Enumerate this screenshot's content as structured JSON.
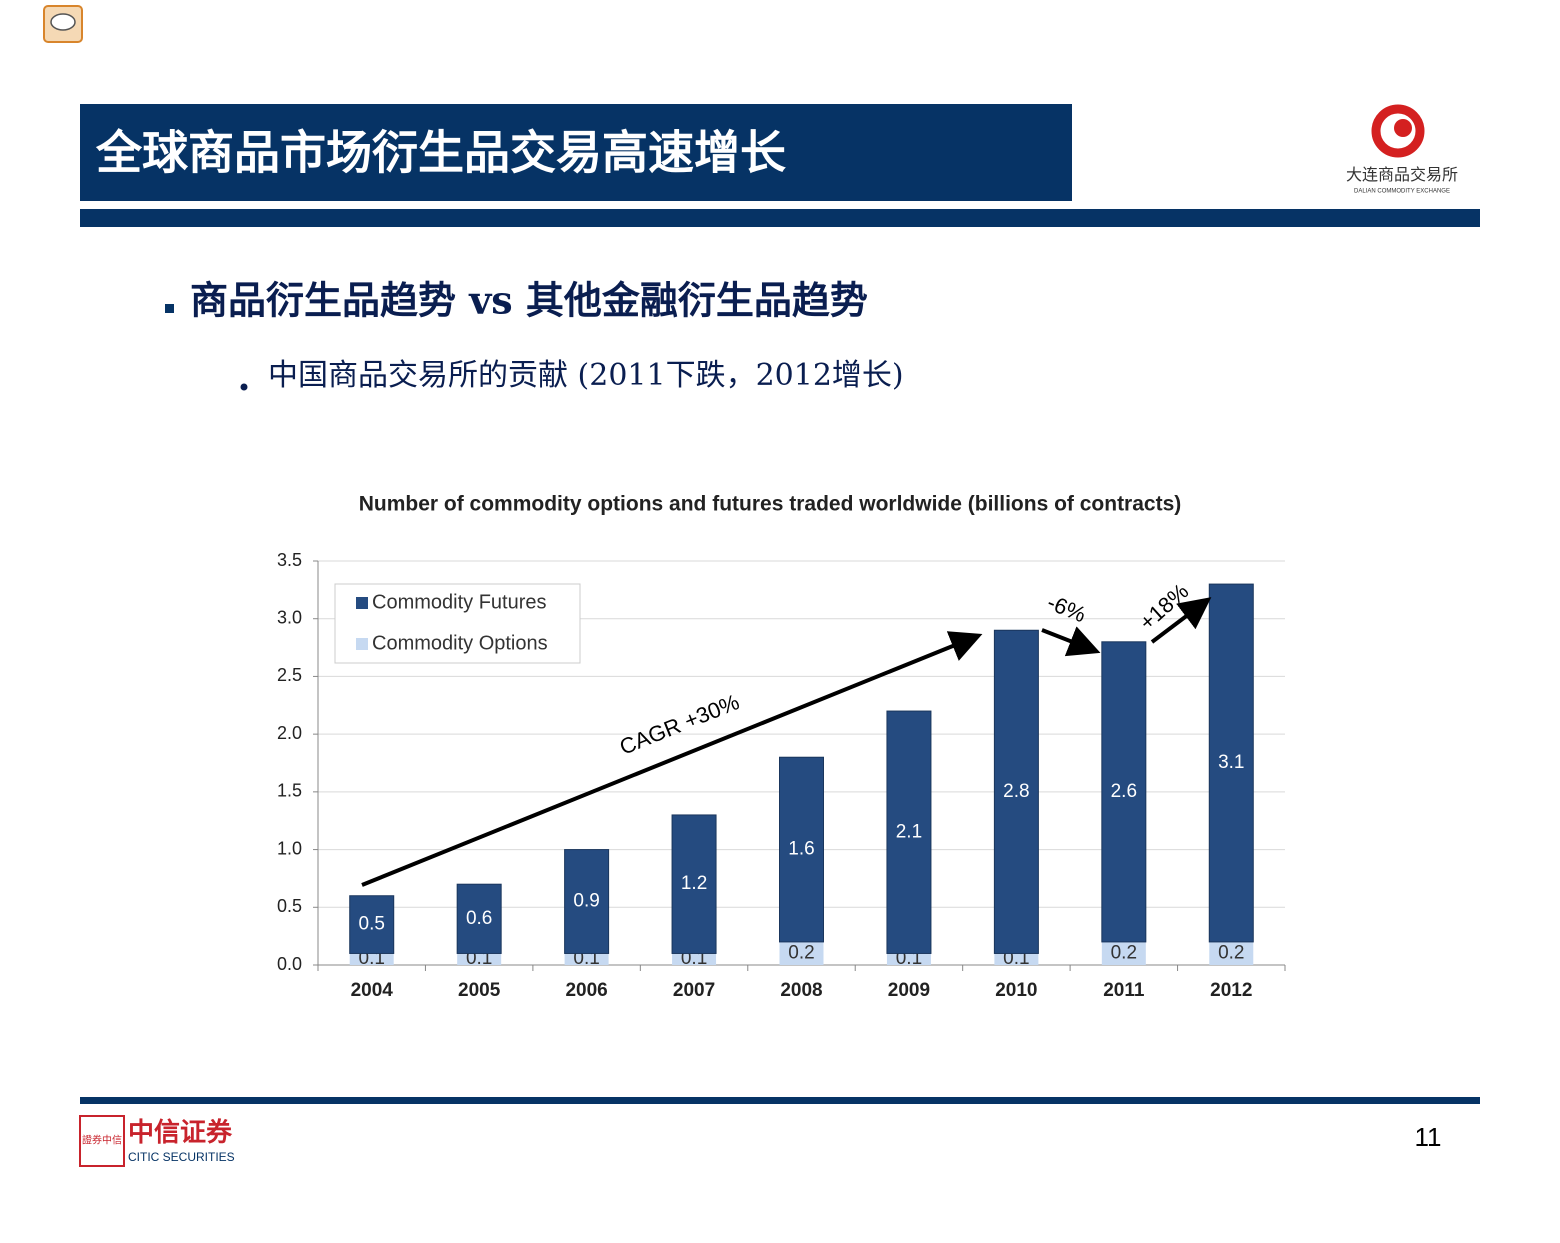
{
  "header": {
    "title": "全球商品市场衍生品交易高速增长"
  },
  "logo": {
    "name": "大连商品交易所",
    "english": "DALIAN COMMODITY EXCHANGE"
  },
  "bullets": [
    "商品衍生品趋势 vs 其他金融衍生品趋势",
    "中国商品交易所的贡献 (2011下跌，2012增长)"
  ],
  "chart_data": {
    "type": "bar",
    "stacked": true,
    "title": "Number of commodity options and futures traded worldwide (billions of contracts)",
    "categories": [
      "2004",
      "2005",
      "2006",
      "2007",
      "2008",
      "2009",
      "2010",
      "2011",
      "2012"
    ],
    "series": [
      {
        "name": "Commodity Futures",
        "color": "#254b80",
        "values": [
          0.5,
          0.6,
          0.9,
          1.2,
          1.6,
          2.1,
          2.8,
          2.6,
          3.1
        ]
      },
      {
        "name": "Commodity Options",
        "color": "#c6d9f1",
        "values": [
          0.1,
          0.1,
          0.1,
          0.1,
          0.2,
          0.1,
          0.1,
          0.2,
          0.2
        ]
      }
    ],
    "ylim": [
      0,
      3.5
    ],
    "yticks": [
      {
        "value": 0,
        "label": "0.0"
      },
      0.5,
      {
        "value": 1,
        "label": "1.0"
      },
      1.5,
      {
        "value": 2,
        "label": "2.0"
      },
      2.5,
      {
        "value": 3,
        "label": "3.0"
      },
      3.5
    ],
    "grid": true,
    "legend": "upper left",
    "annotations": [
      "CAGR +30%",
      "-6%",
      "+18%"
    ]
  },
  "footer": {
    "seal": "證券中信",
    "company": "中信证券",
    "english": "CITIC SECURITIES",
    "page": "11"
  }
}
